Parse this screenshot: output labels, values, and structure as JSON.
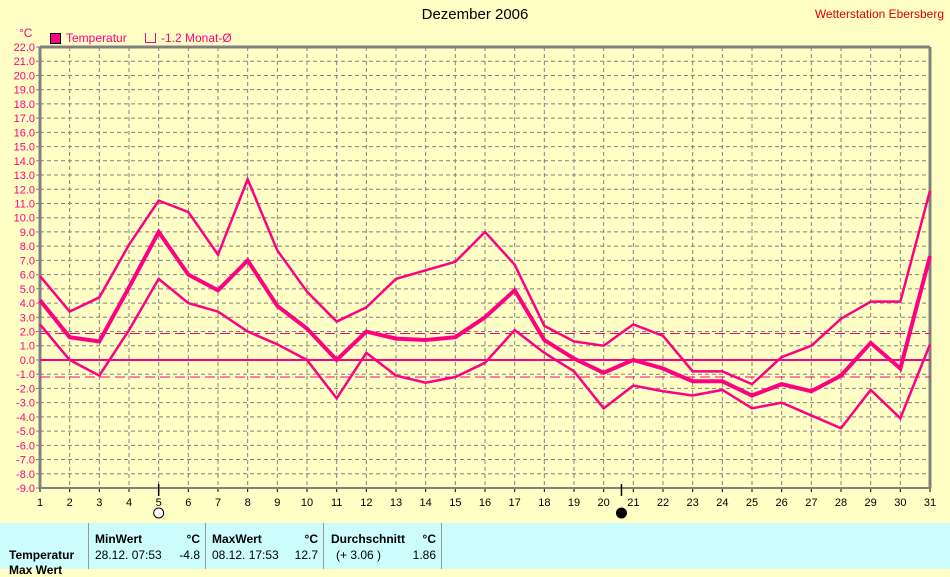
{
  "header": {
    "title": "Dezember 2006",
    "station": "Wetterstation Ebersberg",
    "unit": "°C"
  },
  "legend": [
    {
      "label": "Temperatur",
      "color": "#ff0080",
      "filled": true
    },
    {
      "label": "-1.2 Monat-Ø",
      "color": "#ff0080",
      "filled": false
    }
  ],
  "colors": {
    "line": "#ff0080",
    "background": "#ffffc6",
    "grid": "#808080",
    "panel": "#ccfcfc"
  },
  "moon": [
    {
      "phase": "full-moon",
      "day": 5
    },
    {
      "phase": "new-moon",
      "day": 20.6
    }
  ],
  "chart_data": {
    "type": "line",
    "title": "Dezember 2006",
    "xlabel": "",
    "ylabel": "°C",
    "x": [
      1,
      2,
      3,
      4,
      5,
      6,
      7,
      8,
      9,
      10,
      11,
      12,
      13,
      14,
      15,
      16,
      17,
      18,
      19,
      20,
      21,
      22,
      23,
      24,
      25,
      26,
      27,
      28,
      29,
      30,
      31
    ],
    "ylim": [
      -9,
      22
    ],
    "yticks": [
      "22.0",
      "21.0",
      "20.0",
      "19.0",
      "18.0",
      "17.0",
      "16.0",
      "15.0",
      "14.0",
      "13.0",
      "12.0",
      "11.0",
      "10.0",
      "9.0",
      "8.0",
      "7.0",
      "6.0",
      "5.0",
      "4.0",
      "3.0",
      "2.0",
      "1.0",
      "0.0",
      "-1.0",
      "-2.0",
      "-3.0",
      "-4.0",
      "-5.0",
      "-6.0",
      "-7.0",
      "-8.0",
      "-9.0"
    ],
    "grid": true,
    "legend_position": "top-left",
    "series": [
      {
        "name": "Max",
        "values": [
          5.9,
          3.4,
          4.4,
          8.1,
          11.2,
          10.4,
          7.4,
          12.7,
          7.7,
          4.8,
          2.7,
          3.7,
          5.7,
          6.3,
          6.9,
          9.0,
          6.7,
          2.4,
          1.3,
          1.0,
          2.5,
          1.7,
          -0.8,
          -0.8,
          -1.7,
          0.2,
          1.0,
          2.9,
          4.1,
          4.1,
          11.9
        ]
      },
      {
        "name": "Temperatur",
        "values": [
          4.2,
          1.6,
          1.3,
          5.1,
          9.0,
          6.0,
          4.9,
          7.0,
          3.8,
          2.2,
          0.0,
          2.0,
          1.5,
          1.4,
          1.6,
          3.0,
          4.9,
          1.4,
          0.1,
          -0.9,
          0.0,
          -0.6,
          -1.5,
          -1.5,
          -2.5,
          -1.7,
          -2.2,
          -1.1,
          1.2,
          -0.6,
          7.3
        ]
      },
      {
        "name": "Min",
        "values": [
          2.5,
          0.0,
          -1.1,
          2.1,
          5.7,
          4.0,
          3.4,
          2.0,
          1.1,
          0.0,
          -2.7,
          0.5,
          -1.1,
          -1.6,
          -1.2,
          -0.2,
          2.1,
          0.5,
          -0.8,
          -3.4,
          -1.8,
          -2.2,
          -2.5,
          -2.1,
          -3.4,
          -3.0,
          -3.9,
          -4.8,
          -2.1,
          -4.1,
          1.1
        ]
      }
    ],
    "reference_lines": [
      {
        "name": "Durchschnitt",
        "value": 1.86
      },
      {
        "name": "Monat-Ø",
        "value": -1.2
      }
    ]
  },
  "stats": {
    "headers": {
      "min": "MinWert",
      "max": "MaxWert",
      "avg": "Durchschnitt",
      "unit": "°C"
    },
    "rows": [
      {
        "label": "Temperatur",
        "min_time": "28.12.  07:53",
        "min": "-4.8",
        "max_time": "08.12.  17:53",
        "max": "12.7",
        "avg_diff": "(+ 3.06 )",
        "avg": "1.86"
      },
      {
        "label": "Max Wert"
      }
    ]
  }
}
